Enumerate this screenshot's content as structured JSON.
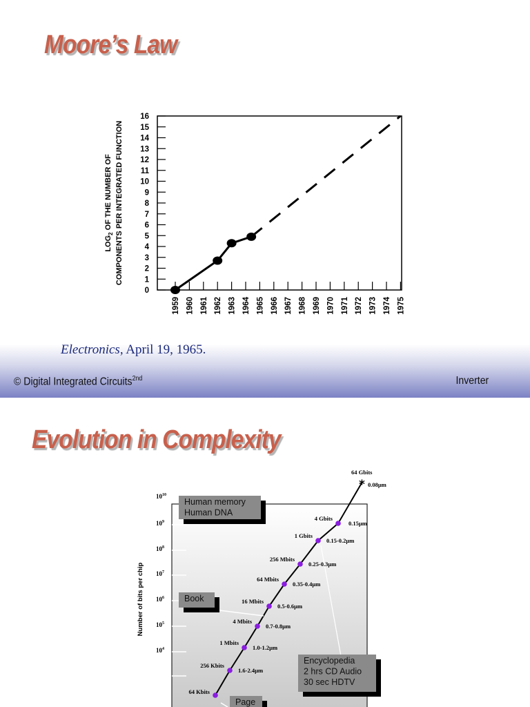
{
  "slides": [
    {
      "title": "Moore’s Law",
      "source_italic": "Electronics",
      "source_rest": ", April 19, 1965.",
      "footer_left": "© Digital Integrated Circuits",
      "footer_sup": "2nd",
      "footer_right": "Inverter"
    },
    {
      "title": "Evolution in Complexity"
    }
  ],
  "chart_data": [
    {
      "type": "line",
      "ylabel_line1": "LOG",
      "ylabel_sub": "2",
      "ylabel_line1_rest": " OF THE NUMBER OF",
      "ylabel_line2": "COMPONENTS PER INTEGRATED FUNCTION",
      "xlabel": "",
      "x_ticks": [
        "1959",
        "1960",
        "1961",
        "1962",
        "1963",
        "1964",
        "1965",
        "1966",
        "1967",
        "1968",
        "1969",
        "1970",
        "1971",
        "1972",
        "1973",
        "1974",
        "1975"
      ],
      "y_ticks": [
        "0",
        "1",
        "2",
        "3",
        "4",
        "5",
        "6",
        "7",
        "8",
        "9",
        "10",
        "11",
        "12",
        "13",
        "14",
        "15",
        "16"
      ],
      "xlim": [
        1959,
        1975
      ],
      "ylim": [
        0,
        16
      ],
      "series": [
        {
          "style": "solid-with-markers",
          "points": [
            [
              1959,
              0
            ],
            [
              1962,
              2.7
            ],
            [
              1963,
              4.3
            ],
            [
              1964.4,
              4.9
            ]
          ]
        },
        {
          "style": "dashed-extrapolation",
          "points": [
            [
              1964.4,
              4.9
            ],
            [
              1975,
              16
            ]
          ]
        }
      ],
      "line_color": "#000000"
    },
    {
      "type": "line",
      "ylabel": "Number of bits per chip",
      "y_scale": "log",
      "y_ticks": [
        {
          "base": "10",
          "exp": "10"
        },
        {
          "base": "10",
          "exp": "9"
        },
        {
          "base": "10",
          "exp": "8"
        },
        {
          "base": "10",
          "exp": "7"
        },
        {
          "base": "10",
          "exp": "6"
        },
        {
          "base": "10",
          "exp": "5"
        },
        {
          "base": "10",
          "exp": "4"
        }
      ],
      "points": [
        {
          "label": "64 Kbits",
          "feature": ""
        },
        {
          "label": "256 Kbits",
          "feature": "1.6-2.4µm"
        },
        {
          "label": "1 Mbits",
          "feature": "1.0-1.2µm"
        },
        {
          "label": "4 Mbits",
          "feature": "0.7-0.8µm"
        },
        {
          "label": "16 Mbits",
          "feature": "0.5-0.6µm"
        },
        {
          "label": "64 Mbits",
          "feature": "0.35-0.4µm"
        },
        {
          "label": "256 Mbits",
          "feature": "0.25-0.3µm"
        },
        {
          "label": "1 Gbits",
          "feature": "0.15-0.2µm"
        },
        {
          "label": "4 Gbits",
          "feature": "0.15µm"
        },
        {
          "label": "64 Gbits",
          "feature": "0.08µm",
          "marker": "star"
        }
      ],
      "marker_color": "#8a1ee0",
      "callouts": [
        {
          "lines": [
            "Human memory",
            "Human DNA"
          ]
        },
        {
          "lines": [
            "Book"
          ]
        },
        {
          "lines": [
            "Encyclopedia",
            "2 hrs CD Audio",
            "30 sec HDTV"
          ]
        },
        {
          "lines": [
            "Page"
          ]
        }
      ]
    }
  ],
  "colors": {
    "title": "#c8604c",
    "source_text": "#1c2a7c",
    "footer_band": "#7b82c4",
    "callout_box": "#8a8a8a"
  }
}
